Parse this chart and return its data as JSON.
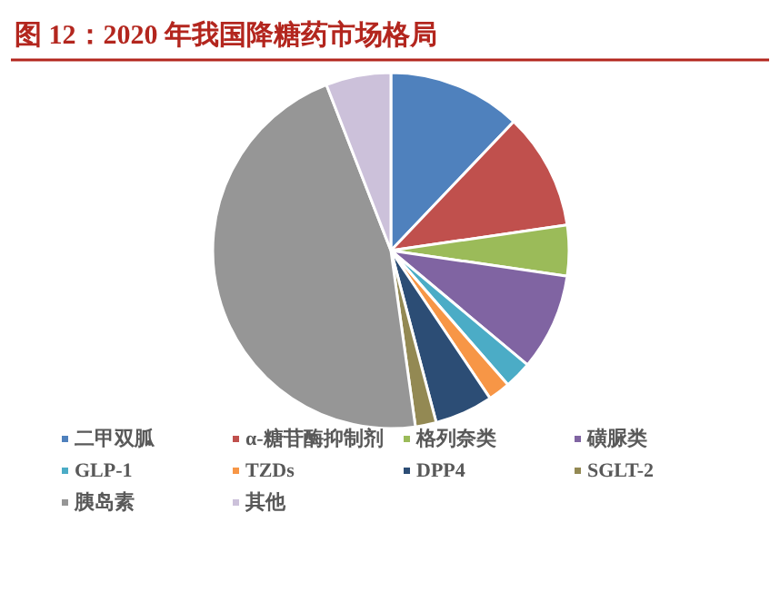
{
  "chart_data": {
    "type": "pie",
    "title": "图 12：2020 年我国降糖药市场格局",
    "categories": [
      "二甲双胍",
      "α-糖苷酶抑制剂",
      "格列奈类",
      "磺脲类",
      "GLP-1",
      "TZDs",
      "DPP4",
      "SGLT-2",
      "胰岛素",
      "其他"
    ],
    "values": [
      12.1,
      10.6,
      4.6,
      8.8,
      2.5,
      2.0,
      5.3,
      1.9,
      46.3,
      5.9
    ],
    "colors": [
      "#4f81bd",
      "#c0504d",
      "#9bbb59",
      "#8064a2",
      "#4bacc6",
      "#f79646",
      "#2c4d75",
      "#938953",
      "#969696",
      "#ccc1da"
    ],
    "legend": "bottom"
  }
}
